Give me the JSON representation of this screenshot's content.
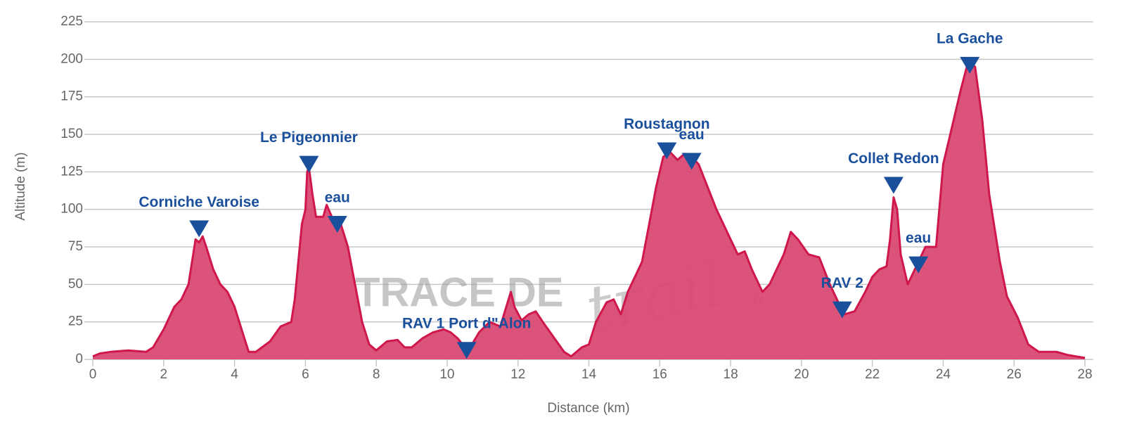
{
  "chart_data": {
    "type": "area",
    "xlabel": "Distance (km)",
    "ylabel": "Altitude (m)",
    "x": [
      0,
      0.2,
      0.5,
      1,
      1.5,
      1.7,
      2,
      2.3,
      2.5,
      2.7,
      2.8,
      2.9,
      3.0,
      3.1,
      3.2,
      3.4,
      3.6,
      3.8,
      4.0,
      4.2,
      4.4,
      4.6,
      5.0,
      5.3,
      5.6,
      5.7,
      5.8,
      5.9,
      6.0,
      6.05,
      6.1,
      6.2,
      6.3,
      6.5,
      6.6,
      6.8,
      7.0,
      7.2,
      7.4,
      7.6,
      7.8,
      8.0,
      8.3,
      8.6,
      8.8,
      9.0,
      9.3,
      9.6,
      9.9,
      10.1,
      10.3,
      10.5,
      10.7,
      10.9,
      11.2,
      11.5,
      11.8,
      11.9,
      12.1,
      12.3,
      12.5,
      12.7,
      13.0,
      13.3,
      13.5,
      13.8,
      14.0,
      14.2,
      14.5,
      14.7,
      14.9,
      15.1,
      15.3,
      15.5,
      15.7,
      15.9,
      16.1,
      16.3,
      16.5,
      16.7,
      16.9,
      17.1,
      17.3,
      17.6,
      17.9,
      18.2,
      18.4,
      18.6,
      18.9,
      19.1,
      19.3,
      19.5,
      19.7,
      19.9,
      20.2,
      20.5,
      20.8,
      21.0,
      21.2,
      21.5,
      21.8,
      22.0,
      22.2,
      22.4,
      22.5,
      22.6,
      22.7,
      22.8,
      23.0,
      23.2,
      23.5,
      23.8,
      24.0,
      24.2,
      24.5,
      24.7,
      24.9,
      25.1,
      25.3,
      25.6,
      25.8,
      26.1,
      26.4,
      26.7,
      27.2,
      27.5,
      28
    ],
    "values": [
      2,
      4,
      5,
      6,
      5,
      8,
      20,
      35,
      40,
      50,
      65,
      80,
      78,
      82,
      75,
      60,
      50,
      45,
      35,
      20,
      5,
      5,
      12,
      22,
      25,
      40,
      65,
      90,
      100,
      125,
      128,
      110,
      95,
      95,
      103,
      92,
      90,
      75,
      50,
      25,
      10,
      6,
      12,
      13,
      8,
      8,
      14,
      18,
      20,
      18,
      14,
      8,
      10,
      18,
      25,
      22,
      45,
      35,
      26,
      30,
      32,
      25,
      15,
      5,
      2,
      8,
      10,
      25,
      38,
      40,
      30,
      45,
      55,
      65,
      90,
      115,
      135,
      138,
      133,
      137,
      135,
      130,
      118,
      100,
      85,
      70,
      72,
      60,
      45,
      50,
      60,
      70,
      85,
      80,
      70,
      68,
      50,
      40,
      30,
      32,
      45,
      55,
      60,
      62,
      80,
      108,
      100,
      70,
      50,
      60,
      75,
      75,
      130,
      150,
      180,
      198,
      195,
      160,
      110,
      65,
      42,
      28,
      10,
      5,
      5,
      3,
      1
    ],
    "color": "#d0174b",
    "fill": "#d94a74",
    "annotations": [
      {
        "label": "Corniche Varoise",
        "x": 3.0,
        "y": 87
      },
      {
        "label": "Le Pigeonnier",
        "x": 6.1,
        "y": 130
      },
      {
        "label": "eau",
        "x": 6.9,
        "y": 90
      },
      {
        "label": "RAV 1 Port d\"Alon",
        "x": 10.55,
        "y": 6
      },
      {
        "label": "Roustagnon",
        "x": 16.2,
        "y": 139
      },
      {
        "label": "eau",
        "x": 16.9,
        "y": 132
      },
      {
        "label": "RAV 2",
        "x": 21.15,
        "y": 33
      },
      {
        "label": "Collet Redon",
        "x": 22.6,
        "y": 116
      },
      {
        "label": "eau",
        "x": 23.3,
        "y": 63
      },
      {
        "label": "La Gache",
        "x": 24.75,
        "y": 196
      }
    ],
    "annotation_color": "#1a4f9c",
    "watermark": [
      "TRACE DE",
      "trail",
      ".fr"
    ],
    "xlim": [
      0,
      28
    ],
    "xticks": [
      0,
      2,
      4,
      6,
      8,
      10,
      12,
      14,
      16,
      18,
      20,
      22,
      24,
      26,
      28
    ],
    "ylim": [
      0,
      225
    ],
    "yticks": [
      0,
      25,
      50,
      75,
      100,
      125,
      150,
      175,
      200,
      225
    ],
    "grid": true
  }
}
